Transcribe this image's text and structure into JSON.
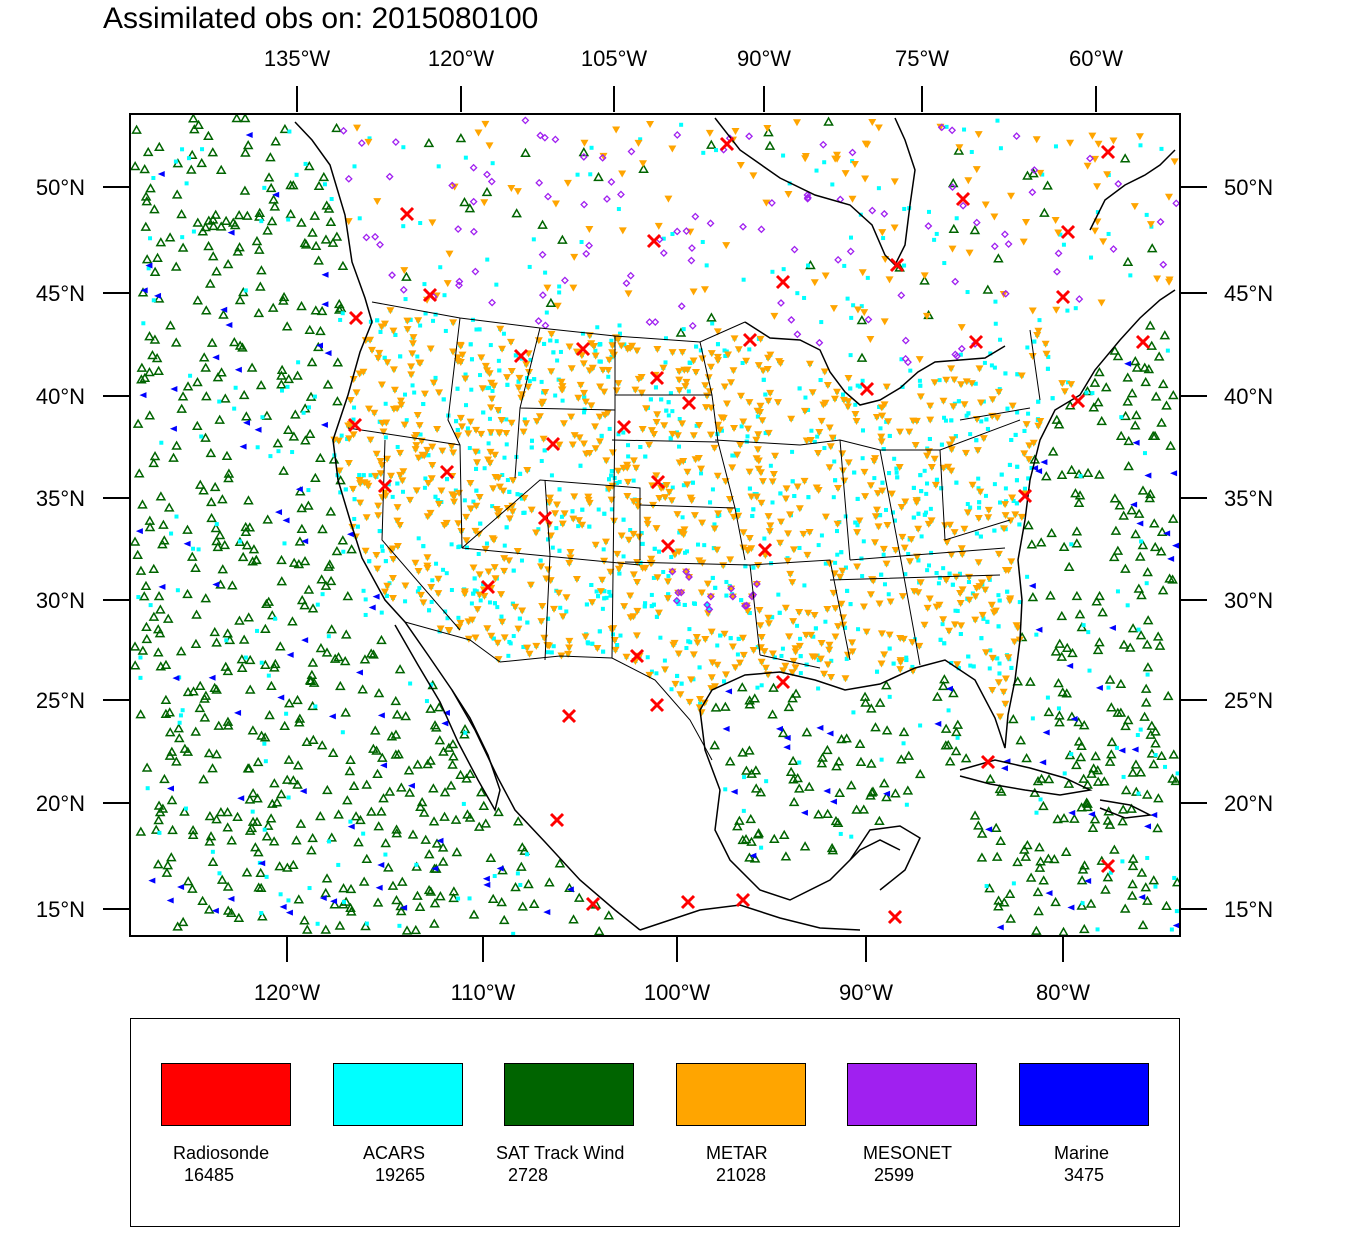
{
  "title": "Assimilated obs on: 2015080100",
  "colors": {
    "radiosonde": "#ff0000",
    "acars": "#00ffff",
    "sat": "#006400",
    "metar": "#ffa500",
    "mesonet": "#a020f0",
    "marine": "#0000ff",
    "land": "#000000"
  },
  "map": {
    "top_lon_labels": [
      "135°W",
      "120°W",
      "105°W",
      "90°W",
      "75°W",
      "60°W"
    ],
    "bottom_lon_labels": [
      "120°W",
      "110°W",
      "100°W",
      "90°W",
      "80°W"
    ],
    "left_lat_labels": [
      "50°N",
      "45°N",
      "40°N",
      "35°N",
      "30°N",
      "25°N",
      "20°N",
      "15°N"
    ],
    "right_lat_labels": [
      "50°N",
      "45°N",
      "40°N",
      "35°N",
      "30°N",
      "25°N",
      "20°N",
      "15°N"
    ]
  },
  "legend": {
    "items": [
      {
        "name": "Radiosonde",
        "count": "16485",
        "color": "#ff0000"
      },
      {
        "name": "ACARS",
        "count": "19265",
        "color": "#00ffff"
      },
      {
        "name": "SAT Track Wind",
        "count": "2728",
        "color": "#006400"
      },
      {
        "name": "METAR",
        "count": "21028",
        "color": "#ffa500"
      },
      {
        "name": "MESONET",
        "count": "2599",
        "color": "#a020f0"
      },
      {
        "name": "Marine",
        "count": "3475",
        "color": "#0000ff"
      }
    ]
  }
}
